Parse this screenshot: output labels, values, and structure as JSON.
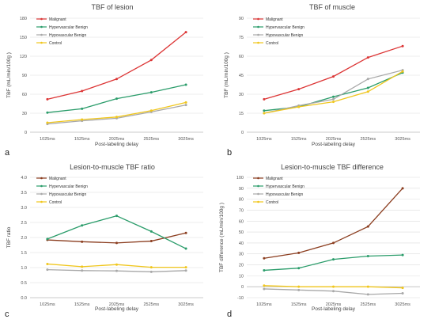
{
  "chart_data": [
    {
      "type": "line",
      "panel": "a",
      "title": "TBF of lesion",
      "xlabel": "Post-labeling delay",
      "ylabel": "TBF (mL/min/100g )",
      "categories": [
        "1025ms",
        "1525ms",
        "2025ms",
        "2525ms",
        "3025ms"
      ],
      "ylim": [
        0,
        180
      ],
      "yticks": [
        0,
        30,
        60,
        90,
        120,
        150,
        180
      ],
      "ytick_labels": [
        "0",
        "30",
        "60",
        "90",
        "120",
        "150",
        "180"
      ],
      "legend_position": "top-left",
      "series": [
        {
          "name": "Malignant",
          "color": "#dc3535",
          "values": [
            52,
            65,
            84,
            114,
            158
          ]
        },
        {
          "name": "Hypervascular Benign",
          "color": "#2a9c6a",
          "values": [
            31,
            37,
            53,
            63,
            75
          ]
        },
        {
          "name": "Hypovascular Benign",
          "color": "#a8a8a8",
          "values": [
            13,
            18,
            22,
            32,
            43
          ]
        },
        {
          "name": "Control",
          "color": "#f0c61c",
          "values": [
            15,
            20,
            24,
            34,
            47
          ]
        }
      ]
    },
    {
      "type": "line",
      "panel": "b",
      "title": "TBF of muscle",
      "xlabel": "Post-labeling delay",
      "ylabel": "TBF (mL/min/100g )",
      "categories": [
        "1025ms",
        "1525ms",
        "2025ms",
        "2525ms",
        "3025ms"
      ],
      "ylim": [
        0,
        90
      ],
      "yticks": [
        0,
        15,
        30,
        45,
        60,
        75,
        90
      ],
      "ytick_labels": [
        "0",
        "15",
        "30",
        "45",
        "60",
        "75",
        "90"
      ],
      "legend_position": "top-left",
      "series": [
        {
          "name": "Malignant",
          "color": "#dc3535",
          "values": [
            26,
            34,
            44,
            59,
            68
          ]
        },
        {
          "name": "Hypervascular Benign",
          "color": "#2a9c6a",
          "values": [
            17,
            20,
            28,
            35,
            47
          ]
        },
        {
          "name": "Hypovascular Benign",
          "color": "#a8a8a8",
          "values": [
            15,
            21,
            26,
            42,
            49
          ]
        },
        {
          "name": "Control",
          "color": "#f0c61c",
          "values": [
            15,
            20,
            24,
            32,
            48
          ]
        }
      ]
    },
    {
      "type": "line",
      "panel": "c",
      "title": "Lesion-to-muscle TBF ratio",
      "xlabel": "Post-labeling delay",
      "ylabel": "TBF ratio",
      "categories": [
        "1025ms",
        "1525ms",
        "2025ms",
        "2525ms",
        "3025ms"
      ],
      "ylim": [
        0,
        4
      ],
      "yticks": [
        0,
        0.5,
        1,
        1.5,
        2,
        2.5,
        3,
        3.5,
        4
      ],
      "ytick_labels": [
        "0.0",
        "0.5",
        "1.0",
        "1.5",
        "2.0",
        "2.5",
        "3.0",
        "3.5",
        "4.0"
      ],
      "legend_position": "top-left",
      "series": [
        {
          "name": "Malignant",
          "color": "#8b3d1f",
          "values": [
            1.92,
            1.86,
            1.82,
            1.88,
            2.15
          ]
        },
        {
          "name": "Hypervascular Benign",
          "color": "#2a9c6a",
          "values": [
            1.95,
            2.4,
            2.72,
            2.2,
            1.63
          ]
        },
        {
          "name": "Hypovascular Benign",
          "color": "#a8a8a8",
          "values": [
            0.93,
            0.9,
            0.89,
            0.86,
            0.9
          ]
        },
        {
          "name": "Control",
          "color": "#f0c61c",
          "values": [
            1.12,
            1.03,
            1.1,
            1.01,
            1.01
          ]
        }
      ]
    },
    {
      "type": "line",
      "panel": "d",
      "title": "Lesion-to-muscle TBF difference",
      "xlabel": "Post-labeling delay",
      "ylabel": "TBF difference (mL/min/100g )",
      "categories": [
        "1025ms",
        "1525ms",
        "2025ms",
        "2525ms",
        "3025ms"
      ],
      "ylim": [
        -10,
        100
      ],
      "yticks": [
        -10,
        0,
        10,
        20,
        30,
        40,
        50,
        60,
        70,
        80,
        90,
        100
      ],
      "ytick_labels": [
        "-10",
        "0",
        "10",
        "20",
        "30",
        "40",
        "50",
        "60",
        "70",
        "80",
        "90",
        "100"
      ],
      "legend_position": "top-left",
      "series": [
        {
          "name": "Malignant",
          "color": "#8b3d1f",
          "values": [
            26,
            31,
            40,
            55,
            90
          ]
        },
        {
          "name": "Hypervascular Benign",
          "color": "#2a9c6a",
          "values": [
            15,
            17,
            25,
            28,
            29
          ]
        },
        {
          "name": "Hypovascular Benign",
          "color": "#a8a8a8",
          "values": [
            -2,
            -3,
            -4,
            -7,
            -6
          ]
        },
        {
          "name": "Control",
          "color": "#f0c61c",
          "values": [
            1,
            0,
            0,
            0,
            -1
          ]
        }
      ]
    }
  ]
}
